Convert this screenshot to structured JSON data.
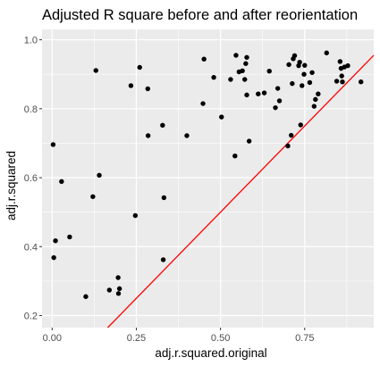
{
  "chart_data": {
    "type": "scatter",
    "title": "Adjusted R square before and after reorientation",
    "xlabel": "adj.r.squared.original",
    "ylabel": "adj.r.squared",
    "xlim": [
      -0.03,
      0.955
    ],
    "ylim": [
      0.165,
      1.03
    ],
    "x_ticks": [
      {
        "value": 0.0,
        "label": "0.00"
      },
      {
        "value": 0.25,
        "label": "0.25"
      },
      {
        "value": 0.5,
        "label": "0.50"
      },
      {
        "value": 0.75,
        "label": "0.75"
      }
    ],
    "y_ticks": [
      {
        "value": 0.2,
        "label": "0.2"
      },
      {
        "value": 0.4,
        "label": "0.4"
      },
      {
        "value": 0.6,
        "label": "0.6"
      },
      {
        "value": 0.8,
        "label": "0.8"
      },
      {
        "value": 1.0,
        "label": "1.0"
      }
    ],
    "grid": true,
    "legend": "none",
    "reference_line": {
      "type": "y = x",
      "color": "#ff0000"
    },
    "colors": {
      "panel": "#ebebeb",
      "grid": "#ffffff",
      "point": "#000000"
    },
    "points": [
      {
        "x": 0.003,
        "y": 0.696
      },
      {
        "x": 0.005,
        "y": 0.368
      },
      {
        "x": 0.01,
        "y": 0.417
      },
      {
        "x": 0.028,
        "y": 0.589
      },
      {
        "x": 0.052,
        "y": 0.428
      },
      {
        "x": 0.1,
        "y": 0.255
      },
      {
        "x": 0.121,
        "y": 0.545
      },
      {
        "x": 0.13,
        "y": 0.911
      },
      {
        "x": 0.14,
        "y": 0.607
      },
      {
        "x": 0.17,
        "y": 0.274
      },
      {
        "x": 0.196,
        "y": 0.31
      },
      {
        "x": 0.197,
        "y": 0.264
      },
      {
        "x": 0.2,
        "y": 0.278
      },
      {
        "x": 0.234,
        "y": 0.867
      },
      {
        "x": 0.247,
        "y": 0.49
      },
      {
        "x": 0.26,
        "y": 0.92
      },
      {
        "x": 0.284,
        "y": 0.858
      },
      {
        "x": 0.285,
        "y": 0.722
      },
      {
        "x": 0.328,
        "y": 0.752
      },
      {
        "x": 0.33,
        "y": 0.362
      },
      {
        "x": 0.332,
        "y": 0.542
      },
      {
        "x": 0.4,
        "y": 0.722
      },
      {
        "x": 0.448,
        "y": 0.815
      },
      {
        "x": 0.451,
        "y": 0.944
      },
      {
        "x": 0.48,
        "y": 0.891
      },
      {
        "x": 0.503,
        "y": 0.776
      },
      {
        "x": 0.53,
        "y": 0.885
      },
      {
        "x": 0.543,
        "y": 0.663
      },
      {
        "x": 0.546,
        "y": 0.955
      },
      {
        "x": 0.555,
        "y": 0.907
      },
      {
        "x": 0.565,
        "y": 0.91
      },
      {
        "x": 0.572,
        "y": 0.885
      },
      {
        "x": 0.575,
        "y": 0.931
      },
      {
        "x": 0.578,
        "y": 0.949
      },
      {
        "x": 0.578,
        "y": 0.84
      },
      {
        "x": 0.585,
        "y": 0.706
      },
      {
        "x": 0.612,
        "y": 0.843
      },
      {
        "x": 0.63,
        "y": 0.846
      },
      {
        "x": 0.645,
        "y": 0.909
      },
      {
        "x": 0.663,
        "y": 0.803
      },
      {
        "x": 0.67,
        "y": 0.859
      },
      {
        "x": 0.675,
        "y": 0.823
      },
      {
        "x": 0.7,
        "y": 0.692
      },
      {
        "x": 0.703,
        "y": 0.928
      },
      {
        "x": 0.71,
        "y": 0.723
      },
      {
        "x": 0.713,
        "y": 0.873
      },
      {
        "x": 0.716,
        "y": 0.945
      },
      {
        "x": 0.72,
        "y": 0.954
      },
      {
        "x": 0.732,
        "y": 0.925
      },
      {
        "x": 0.735,
        "y": 0.935
      },
      {
        "x": 0.738,
        "y": 0.753
      },
      {
        "x": 0.742,
        "y": 0.867
      },
      {
        "x": 0.748,
        "y": 0.9
      },
      {
        "x": 0.75,
        "y": 0.926
      },
      {
        "x": 0.765,
        "y": 0.876
      },
      {
        "x": 0.772,
        "y": 0.905
      },
      {
        "x": 0.778,
        "y": 0.807
      },
      {
        "x": 0.782,
        "y": 0.827
      },
      {
        "x": 0.79,
        "y": 0.843
      },
      {
        "x": 0.815,
        "y": 0.962
      },
      {
        "x": 0.845,
        "y": 0.88
      },
      {
        "x": 0.855,
        "y": 0.937
      },
      {
        "x": 0.858,
        "y": 0.917
      },
      {
        "x": 0.86,
        "y": 0.895
      },
      {
        "x": 0.862,
        "y": 0.878
      },
      {
        "x": 0.868,
        "y": 0.921
      },
      {
        "x": 0.878,
        "y": 0.925
      },
      {
        "x": 0.917,
        "y": 0.878
      }
    ]
  }
}
